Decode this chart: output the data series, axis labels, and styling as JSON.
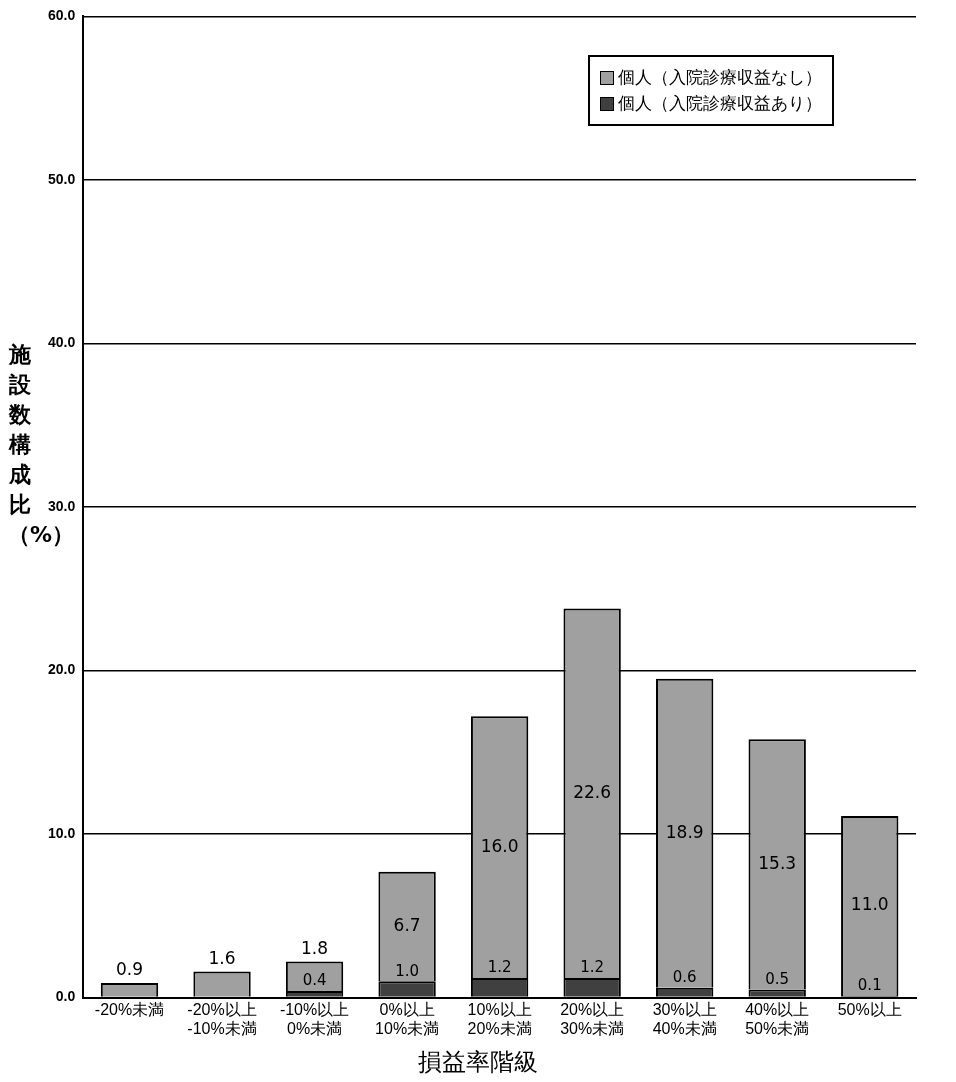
{
  "chart_data": {
    "type": "bar",
    "stacked": true,
    "xlabel": "損益率階級",
    "ylabel": "施設数構成比（%）",
    "categories": [
      "-20%未満",
      "-20%以上\n-10%未満",
      "-10%以上\n0%未満",
      "0%以上\n10%未満",
      "10%以上\n20%未満",
      "20%以上\n30%未満",
      "30%以上\n40%未満",
      "40%以上\n50%未満",
      "50%以上"
    ],
    "series": [
      {
        "name": "個人（入院診療収益あり）",
        "color": "#404040",
        "values": [
          0.0,
          0.0,
          0.4,
          1.0,
          1.2,
          1.2,
          0.6,
          0.5,
          0.1
        ],
        "value_labels": [
          null,
          null,
          "0.4",
          "1.0",
          "1.2",
          "1.2",
          "0.6",
          "0.5",
          "0.1"
        ]
      },
      {
        "name": "個人（入院診療収益なし）",
        "color": "#a0a0a0",
        "values": [
          0.9,
          1.6,
          1.8,
          6.7,
          16.0,
          22.6,
          18.9,
          15.3,
          11.0
        ],
        "value_labels": [
          "0.9",
          "1.6",
          "1.8",
          "6.7",
          "16.0",
          "22.6",
          "18.9",
          "15.3",
          "11.0"
        ]
      }
    ],
    "ylim": [
      0,
      60
    ],
    "yticks": [
      {
        "value": 0,
        "label": "0.0"
      },
      {
        "value": 10,
        "label": "10.0"
      },
      {
        "value": 20,
        "label": "20.0"
      },
      {
        "value": 30,
        "label": "30.0"
      },
      {
        "value": 40,
        "label": "40.0"
      },
      {
        "value": 50,
        "label": "50.0"
      },
      {
        "value": 60,
        "label": "60.0"
      }
    ],
    "grid": "y",
    "legend": "top right"
  }
}
